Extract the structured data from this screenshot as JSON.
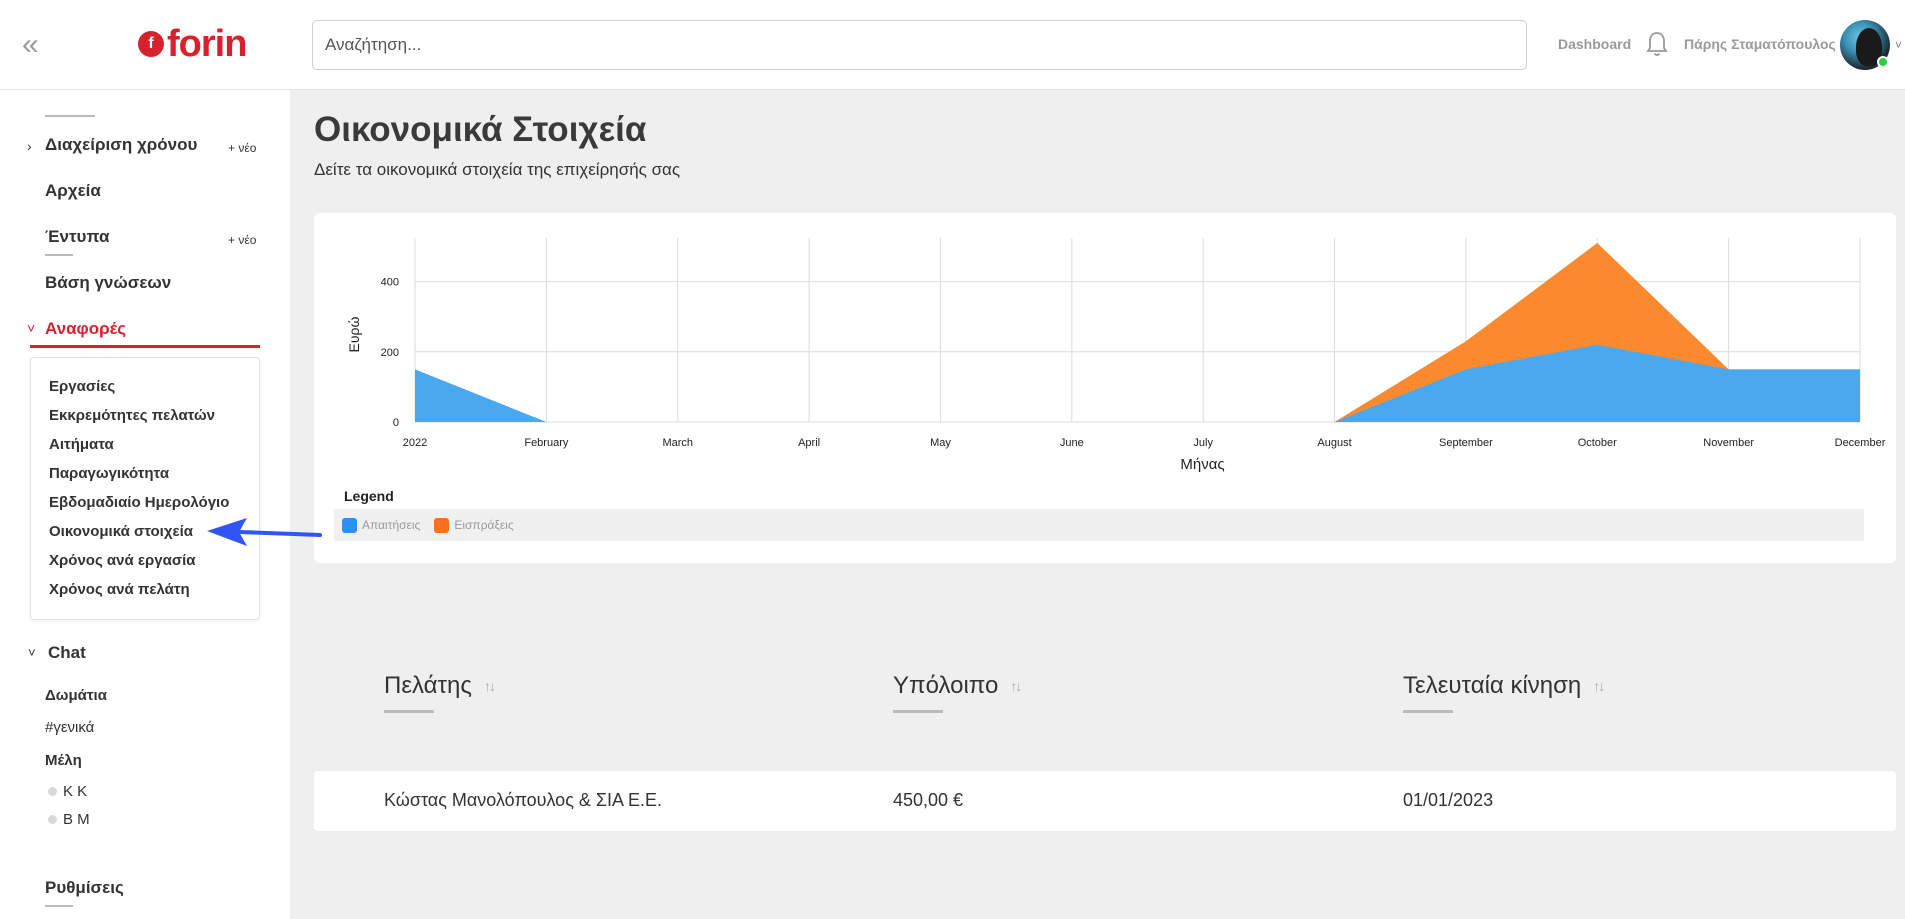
{
  "topbar": {
    "search_placeholder": "Αναζήτηση...",
    "dashboard_link": "Dashboard",
    "user_name": "Πάρης Σταματόπουλος",
    "logo_text": "forin",
    "logo_mark": "f"
  },
  "sidebar": {
    "time_mgmt": "Διαχείριση χρόνου",
    "time_mgmt_new": "+ νέο",
    "files": "Αρχεία",
    "forms": "Έντυπα",
    "forms_new": "+ νέο",
    "knowledge": "Βάση γνώσεων",
    "reports": "Αναφορές",
    "report_items": [
      "Εργασίες",
      "Εκκρεμότητες πελατών",
      "Αιτήματα",
      "Παραγωγικότητα",
      "Εβδομαδιαίο Ημερολόγιο",
      "Οικονομικά στοιχεία",
      "Χρόνος ανά εργασία",
      "Χρόνος ανά πελάτη"
    ],
    "chat": "Chat",
    "rooms_label": "Δωμάτια",
    "room_general": "#γενικά",
    "members_label": "Μέλη",
    "members": [
      "K K",
      "B M"
    ],
    "settings": "Ρυθμίσεις"
  },
  "main": {
    "title": "Οικονομικά Στοιχεία",
    "subtitle": "Δείτε τα οικονομικά στοιχεία της επιχείρησής σας",
    "legend_title": "Legend"
  },
  "chart_data": {
    "type": "area",
    "x": [
      "2022",
      "February",
      "March",
      "April",
      "May",
      "June",
      "July",
      "August",
      "September",
      "October",
      "November",
      "December"
    ],
    "series": [
      {
        "name": "Απαιτήσεις",
        "color": "#4aa8ef",
        "values": [
          150,
          0,
          0,
          0,
          0,
          0,
          0,
          0,
          150,
          220,
          150,
          150
        ]
      },
      {
        "name": "Εισπράξεις",
        "color": "#fb8a2e",
        "values": [
          0,
          0,
          0,
          0,
          0,
          0,
          0,
          0,
          230,
          510,
          150,
          150
        ]
      }
    ],
    "xlabel": "Μήνας",
    "ylabel": "Ευρώ",
    "yticks": [
      0,
      200,
      400
    ],
    "ylim": [
      0,
      510
    ],
    "grid": true,
    "legend_placement": "bottom"
  },
  "table": {
    "headers": [
      "Πελάτης",
      "Υπόλοιπο",
      "Τελευταία κίνηση"
    ],
    "rows": [
      {
        "client": "Κώστας Μανολόπουλος & ΣΙΑ Ε.Ε.",
        "balance": "450,00 €",
        "last": "01/01/2023"
      }
    ]
  }
}
